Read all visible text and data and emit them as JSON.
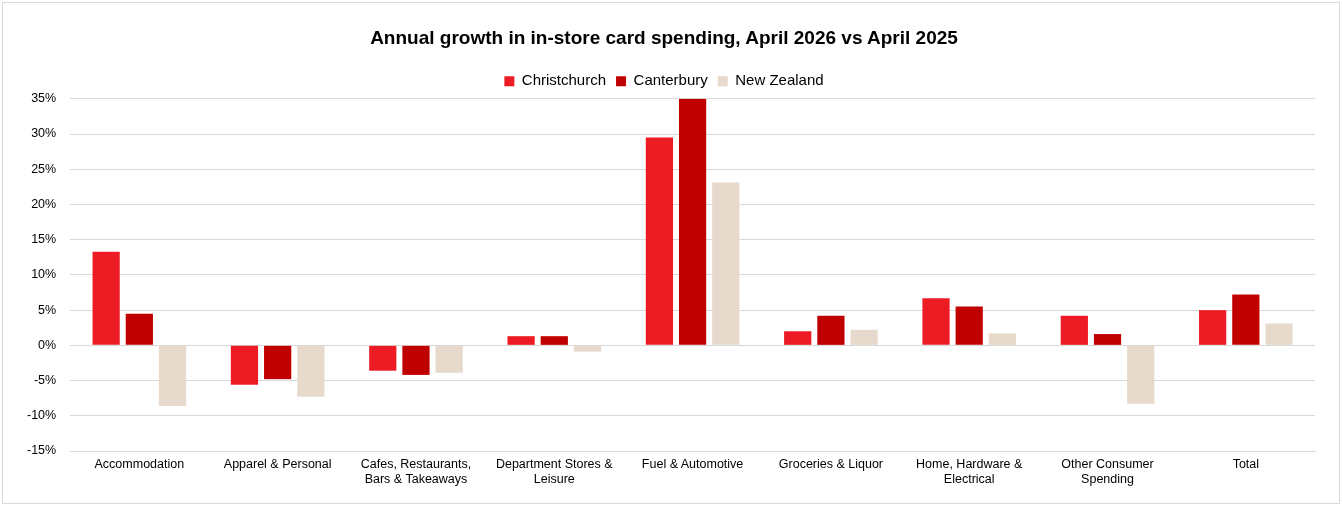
{
  "chart_data": {
    "type": "bar",
    "title": "Annual growth in in-store card spending, April 2026 vs April 2025",
    "categories": [
      "Accommodation",
      "Apparel & Personal",
      "Cafes, Restaurants, Bars & Takeaways",
      "Department Stores & Leisure",
      "Fuel & Automotive",
      "Groceries & Liquor",
      "Home, Hardware & Electrical",
      "Other Consumer Spending",
      "Total"
    ],
    "series": [
      {
        "name": "Christchurch",
        "color": "#ed1c24",
        "values": [
          13.3,
          -5.6,
          -3.6,
          1.3,
          29.5,
          2.0,
          6.7,
          4.2,
          5.0
        ]
      },
      {
        "name": "Canterbury",
        "color": "#c00000",
        "values": [
          4.5,
          -4.8,
          -4.2,
          1.3,
          35,
          4.2,
          5.5,
          1.6,
          7.2
        ]
      },
      {
        "name": "New Zealand",
        "color": "#e7d9cb",
        "values": [
          -8.6,
          -7.3,
          -3.9,
          -0.9,
          23.1,
          2.2,
          1.7,
          -8.3,
          3.1
        ]
      }
    ],
    "ylim": [
      -15,
      35
    ],
    "yticks": [
      {
        "value": -15,
        "label": "-15%"
      },
      {
        "value": -10,
        "label": "-10%"
      },
      {
        "value": -5,
        "label": "-5%"
      },
      {
        "value": 0,
        "label": "0%"
      },
      {
        "value": 5,
        "label": "5%"
      },
      {
        "value": 10,
        "label": "10%"
      },
      {
        "value": 15,
        "label": "15%"
      },
      {
        "value": 20,
        "label": "20%"
      },
      {
        "value": 25,
        "label": "25%"
      },
      {
        "value": 30,
        "label": "30%"
      },
      {
        "value": 35,
        "label": "35%"
      }
    ],
    "grid": "y",
    "legend": "top"
  }
}
